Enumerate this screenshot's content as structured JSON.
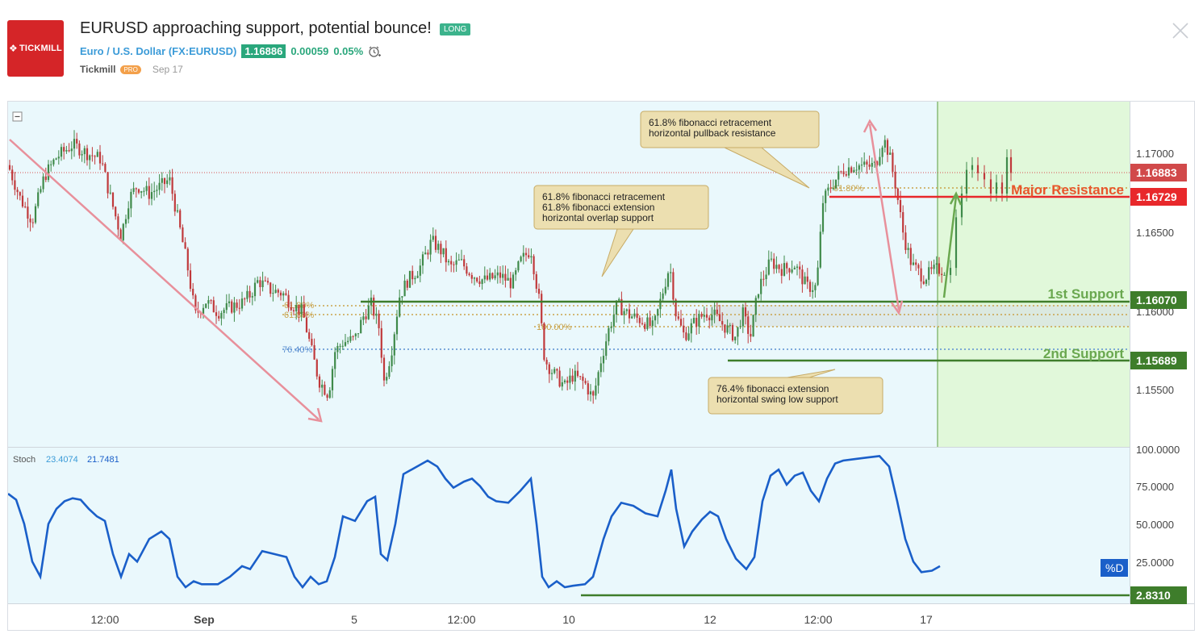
{
  "header": {
    "logo_text": "TICKMILL",
    "title": "EURUSD approaching support, potential bounce!",
    "direction_badge": "LONG",
    "symbol_name": "Euro / U.S. Dollar",
    "symbol_ticker": "(FX:EURUSD)",
    "last_price": "1.16886",
    "change": "0.00059",
    "change_pct": "0.05%",
    "author": "Tickmill",
    "author_badge": "PRO",
    "publish_date": "Sep 17"
  },
  "colors": {
    "brand_red": "#d52528",
    "long_green": "#3cb38c",
    "resistance_red": "#e8282b",
    "support_green": "#3e7d2b",
    "stoch_line": "#1a5fc9",
    "bearish_arrow": "#e8909b",
    "projection_bg": "#e1f8da",
    "chart_bg": "#eaf8fc"
  },
  "chart_data": {
    "type": "candlestick",
    "symbol": "EURUSD",
    "y_axis_ticks": [
      "1.17000",
      "1.16500",
      "1.16000",
      "1.15500"
    ],
    "ylim": [
      1.1514,
      1.1733
    ],
    "x_axis_ticks": [
      "12:00",
      "Sep",
      "5",
      "12:00",
      "10",
      "12",
      "12:00",
      "17"
    ],
    "price_series": [
      [
        0,
        1.1693
      ],
      [
        15,
        1.1672
      ],
      [
        30,
        1.1658
      ],
      [
        45,
        1.1686
      ],
      [
        60,
        1.1698
      ],
      [
        80,
        1.1706
      ],
      [
        100,
        1.17
      ],
      [
        115,
        1.1697
      ],
      [
        125,
        1.1676
      ],
      [
        140,
        1.1648
      ],
      [
        150,
        1.1672
      ],
      [
        160,
        1.168
      ],
      [
        175,
        1.1675
      ],
      [
        190,
        1.168
      ],
      [
        200,
        1.1684
      ],
      [
        210,
        1.166
      ],
      [
        222,
        1.163
      ],
      [
        232,
        1.1598
      ],
      [
        245,
        1.1607
      ],
      [
        260,
        1.16
      ],
      [
        275,
        1.1603
      ],
      [
        290,
        1.1606
      ],
      [
        300,
        1.1611
      ],
      [
        310,
        1.162
      ],
      [
        325,
        1.1614
      ],
      [
        340,
        1.1612
      ],
      [
        352,
        1.1605
      ],
      [
        365,
        1.16
      ],
      [
        375,
        1.1578
      ],
      [
        385,
        1.1557
      ],
      [
        397,
        1.1548
      ],
      [
        405,
        1.1575
      ],
      [
        415,
        1.1581
      ],
      [
        430,
        1.1583
      ],
      [
        440,
        1.1597
      ],
      [
        450,
        1.1605
      ],
      [
        460,
        1.159
      ],
      [
        466,
        1.1556
      ],
      [
        475,
        1.1575
      ],
      [
        485,
        1.161
      ],
      [
        495,
        1.162
      ],
      [
        510,
        1.1628
      ],
      [
        525,
        1.1645
      ],
      [
        538,
        1.1638
      ],
      [
        548,
        1.1628
      ],
      [
        560,
        1.1632
      ],
      [
        575,
        1.1624
      ],
      [
        590,
        1.162
      ],
      [
        610,
        1.1623
      ],
      [
        625,
        1.1618
      ],
      [
        635,
        1.1632
      ],
      [
        648,
        1.164
      ],
      [
        658,
        1.1608
      ],
      [
        665,
        1.157
      ],
      [
        675,
        1.1562
      ],
      [
        690,
        1.1553
      ],
      [
        700,
        1.156
      ],
      [
        715,
        1.1555
      ],
      [
        725,
        1.1545
      ],
      [
        735,
        1.157
      ],
      [
        745,
        1.159
      ],
      [
        755,
        1.1605
      ],
      [
        770,
        1.1598
      ],
      [
        785,
        1.1595
      ],
      [
        800,
        1.159
      ],
      [
        810,
        1.161
      ],
      [
        820,
        1.163
      ],
      [
        828,
        1.1598
      ],
      [
        838,
        1.1585
      ],
      [
        850,
        1.1593
      ],
      [
        865,
        1.16
      ],
      [
        875,
        1.1598
      ],
      [
        890,
        1.159
      ],
      [
        902,
        1.1584
      ],
      [
        910,
        1.16
      ],
      [
        920,
        1.1584
      ],
      [
        930,
        1.1615
      ],
      [
        945,
        1.1632
      ],
      [
        960,
        1.1627
      ],
      [
        975,
        1.163
      ],
      [
        990,
        1.1616
      ],
      [
        1002,
        1.1616
      ],
      [
        1010,
        1.167
      ],
      [
        1020,
        1.168
      ],
      [
        1035,
        1.169
      ],
      [
        1050,
        1.1693
      ],
      [
        1065,
        1.1692
      ],
      [
        1075,
        1.1693
      ],
      [
        1085,
        1.171
      ],
      [
        1092,
        1.17
      ],
      [
        1100,
        1.168
      ],
      [
        1110,
        1.1648
      ],
      [
        1120,
        1.163
      ],
      [
        1135,
        1.1622
      ],
      [
        1150,
        1.1627
      ],
      [
        1162,
        1.1627
      ]
    ],
    "stoch_series": [
      [
        0,
        70
      ],
      [
        10,
        66
      ],
      [
        20,
        50
      ],
      [
        30,
        25
      ],
      [
        40,
        15
      ],
      [
        50,
        50
      ],
      [
        60,
        60
      ],
      [
        70,
        65
      ],
      [
        80,
        67
      ],
      [
        90,
        66
      ],
      [
        100,
        60
      ],
      [
        110,
        55
      ],
      [
        120,
        52
      ],
      [
        130,
        30
      ],
      [
        140,
        15
      ],
      [
        150,
        30
      ],
      [
        160,
        25
      ],
      [
        175,
        40
      ],
      [
        190,
        45
      ],
      [
        200,
        40
      ],
      [
        210,
        15
      ],
      [
        220,
        8
      ],
      [
        230,
        12
      ],
      [
        240,
        10
      ],
      [
        260,
        10
      ],
      [
        275,
        15
      ],
      [
        290,
        22
      ],
      [
        300,
        20
      ],
      [
        315,
        32
      ],
      [
        330,
        30
      ],
      [
        345,
        28
      ],
      [
        355,
        15
      ],
      [
        365,
        8
      ],
      [
        375,
        15
      ],
      [
        385,
        10
      ],
      [
        395,
        12
      ],
      [
        405,
        28
      ],
      [
        415,
        55
      ],
      [
        430,
        52
      ],
      [
        445,
        65
      ],
      [
        455,
        68
      ],
      [
        462,
        30
      ],
      [
        470,
        26
      ],
      [
        480,
        50
      ],
      [
        490,
        83
      ],
      [
        500,
        86
      ],
      [
        510,
        89
      ],
      [
        520,
        92
      ],
      [
        532,
        88
      ],
      [
        542,
        80
      ],
      [
        552,
        74
      ],
      [
        565,
        78
      ],
      [
        575,
        80
      ],
      [
        585,
        75
      ],
      [
        595,
        68
      ],
      [
        605,
        65
      ],
      [
        620,
        64
      ],
      [
        635,
        72
      ],
      [
        648,
        80
      ],
      [
        655,
        50
      ],
      [
        662,
        15
      ],
      [
        670,
        8
      ],
      [
        680,
        12
      ],
      [
        690,
        8
      ],
      [
        700,
        9
      ],
      [
        715,
        10
      ],
      [
        725,
        15
      ],
      [
        738,
        40
      ],
      [
        748,
        55
      ],
      [
        760,
        64
      ],
      [
        775,
        62
      ],
      [
        790,
        57
      ],
      [
        805,
        55
      ],
      [
        815,
        72
      ],
      [
        822,
        86
      ],
      [
        828,
        60
      ],
      [
        838,
        35
      ],
      [
        848,
        45
      ],
      [
        860,
        53
      ],
      [
        870,
        58
      ],
      [
        880,
        55
      ],
      [
        890,
        40
      ],
      [
        902,
        27
      ],
      [
        915,
        20
      ],
      [
        925,
        28
      ],
      [
        935,
        65
      ],
      [
        945,
        82
      ],
      [
        955,
        86
      ],
      [
        965,
        76
      ],
      [
        975,
        82
      ],
      [
        985,
        84
      ],
      [
        995,
        72
      ],
      [
        1005,
        65
      ],
      [
        1015,
        80
      ],
      [
        1025,
        90
      ],
      [
        1035,
        92
      ],
      [
        1050,
        93
      ],
      [
        1065,
        94
      ],
      [
        1080,
        95
      ],
      [
        1092,
        88
      ],
      [
        1102,
        65
      ],
      [
        1112,
        40
      ],
      [
        1122,
        25
      ],
      [
        1132,
        18
      ],
      [
        1145,
        19
      ],
      [
        1155,
        22
      ]
    ],
    "stoch_axis_ticks": [
      "100.0000",
      "75.0000",
      "50.0000",
      "25.0000"
    ],
    "stoch_label": "Stoch",
    "stoch_k": "23.4074",
    "stoch_d": "21.7481",
    "stoch_tag": "%D",
    "stoch_level": "2.8310",
    "levels": {
      "current_price": "1.16883",
      "major_resistance": "1.16729",
      "first_support": "1.16070",
      "second_support": "1.15689"
    },
    "level_labels": {
      "major_resistance": "Major Resistance",
      "first_support": "1st Support",
      "second_support": "2nd Support"
    },
    "fib_labels": {
      "a": "61.80%",
      "b": "61.80%",
      "c": "100.00%",
      "d": "76.40%",
      "e": "61.80%"
    },
    "annotations": [
      "61.8% fibonacci retracement\nhorizontal pullback resistance",
      "61.8% fibonacci retracement\n61.8% fibonacci extension\nhorizontal overlap support",
      "76.4% fibonacci extension\nhorizontal swing low support"
    ]
  }
}
